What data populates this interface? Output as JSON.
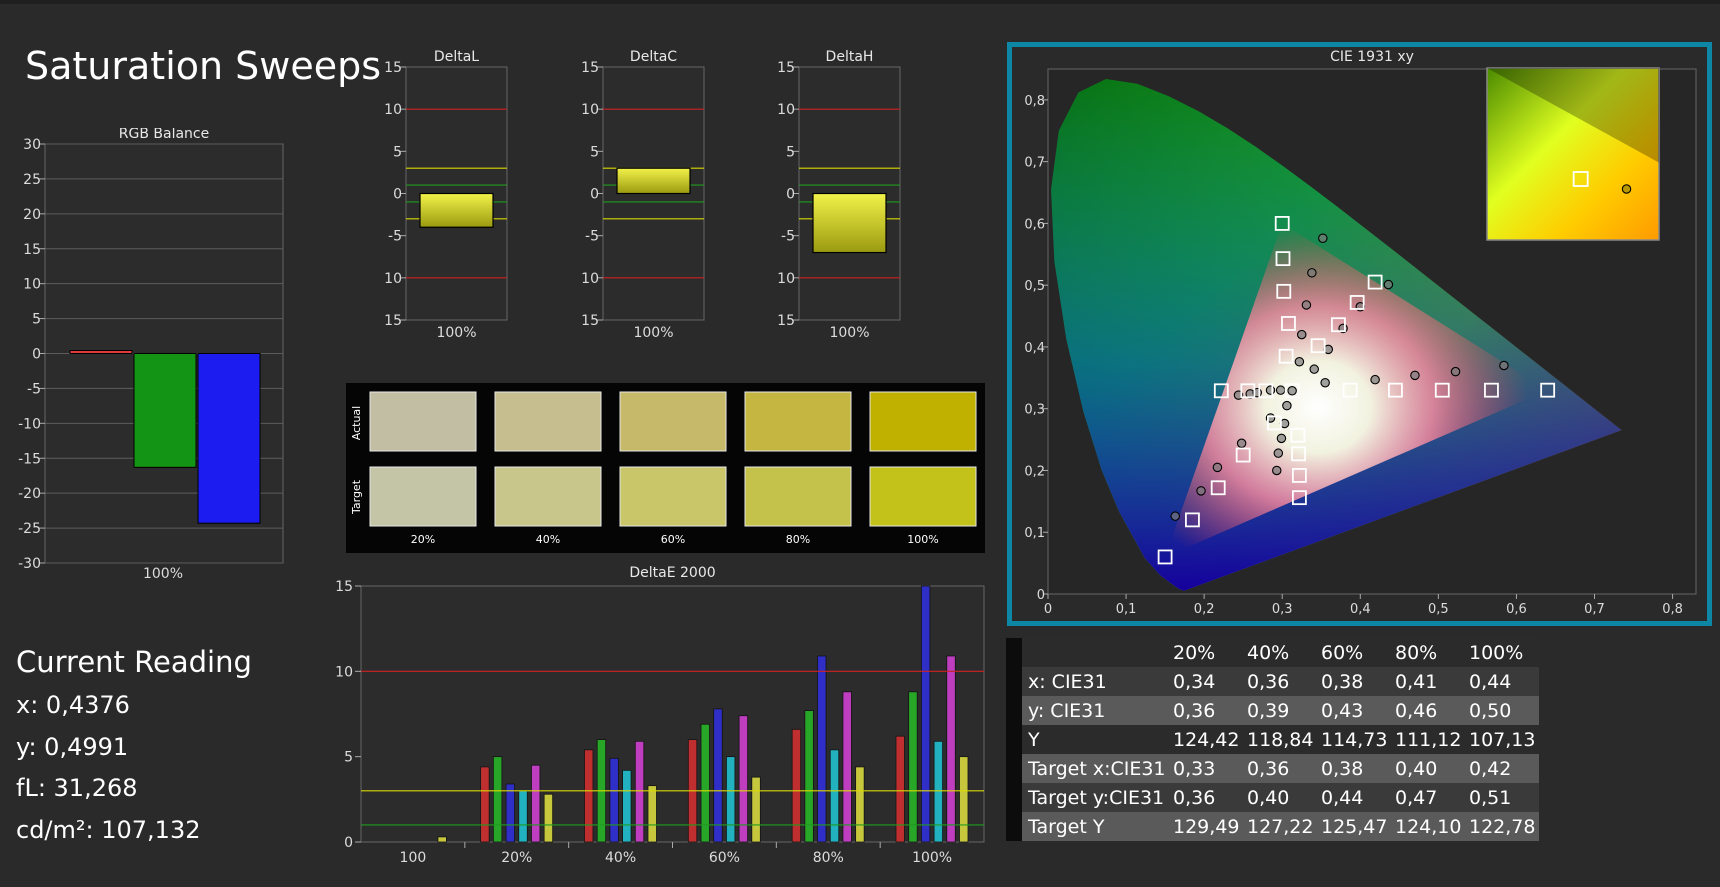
{
  "page": {
    "title": "Saturation Sweeps"
  },
  "colors": {
    "red_limit": "#cc2222",
    "yellow_limit": "#d8d800",
    "green_limit": "#1f9b1f",
    "cie_frame": "#0e86a6"
  },
  "current_reading": {
    "heading": "Current Reading",
    "lines": [
      "x: 0,4376",
      "y: 0,4991",
      "fL: 31,268",
      "cd/m²: 107,132"
    ]
  },
  "chart_data": [
    {
      "id": "rgb_balance",
      "type": "bar",
      "title": "RGB Balance",
      "categories": [
        "100%"
      ],
      "ylim": [
        -30,
        30
      ],
      "yticks": [
        30,
        25,
        20,
        15,
        10,
        5,
        0,
        -5,
        -10,
        -15,
        -20,
        -25,
        -30
      ],
      "series": [
        {
          "color": "#e23a3a",
          "values": [
            0.4
          ]
        },
        {
          "color": "#149414",
          "values": [
            -16.3
          ]
        },
        {
          "color": "#1c1cf0",
          "values": [
            -24.3
          ]
        }
      ]
    },
    {
      "id": "delta_l",
      "type": "bar",
      "title": "DeltaL",
      "categories": [
        "100%"
      ],
      "ylim": [
        -15,
        15
      ],
      "yticks": [
        15,
        10,
        5,
        0,
        -5,
        -10,
        -15
      ],
      "values": [
        -4
      ]
    },
    {
      "id": "delta_c",
      "type": "bar",
      "title": "DeltaC",
      "categories": [
        "100%"
      ],
      "ylim": [
        -15,
        15
      ],
      "yticks": [
        15,
        10,
        5,
        0,
        -5,
        -10,
        -15
      ],
      "values": [
        3
      ]
    },
    {
      "id": "delta_h",
      "type": "bar",
      "title": "DeltaH",
      "categories": [
        "100%"
      ],
      "ylim": [
        -15,
        15
      ],
      "yticks": [
        15,
        10,
        5,
        0,
        -5,
        -10,
        -15
      ],
      "values": [
        -7
      ]
    },
    {
      "id": "swatches",
      "type": "table",
      "row_labels": [
        "Actual",
        "Target"
      ],
      "columns": [
        "20%",
        "40%",
        "60%",
        "80%",
        "100%"
      ],
      "actual_colors": [
        "#c2bea4",
        "#c6be8e",
        "#c6b96a",
        "#c4b640",
        "#c0b000"
      ],
      "target_colors": [
        "#c4c4a6",
        "#c8c68a",
        "#c8c668",
        "#c4c24a",
        "#c2c21a"
      ]
    },
    {
      "id": "delta_e_2000",
      "type": "bar",
      "title": "DeltaE 2000",
      "categories": [
        "100",
        "20%",
        "40%",
        "60%",
        "80%",
        "100%"
      ],
      "ylim": [
        0,
        15
      ],
      "yticks": [
        15,
        10,
        5,
        0
      ],
      "series": [
        {
          "color": "#d03030",
          "values": [
            null,
            4.4,
            5.4,
            6.0,
            6.6,
            6.2
          ]
        },
        {
          "color": "#28b428",
          "values": [
            null,
            5.0,
            6.0,
            6.9,
            7.7,
            8.8
          ]
        },
        {
          "color": "#3030d8",
          "values": [
            null,
            3.4,
            4.9,
            7.8,
            10.9,
            15.0
          ]
        },
        {
          "color": "#20c0d0",
          "values": [
            null,
            3.0,
            4.2,
            5.0,
            5.4,
            5.9
          ]
        },
        {
          "color": "#d040d0",
          "values": [
            null,
            4.5,
            5.9,
            7.4,
            8.8,
            10.9
          ]
        },
        {
          "color": "#d8d840",
          "values": [
            0.3,
            2.8,
            3.3,
            3.8,
            4.4,
            5.0
          ]
        }
      ],
      "reference_lines": [
        10,
        3,
        1
      ]
    },
    {
      "id": "cie_1931_xy",
      "type": "scatter",
      "title": "CIE 1931 xy",
      "xlim": [
        0,
        0.83
      ],
      "ylim": [
        0,
        0.85
      ],
      "xticks": [
        "0",
        "0,1",
        "0,2",
        "0,3",
        "0,4",
        "0,5",
        "0,6",
        "0,7",
        "0,8"
      ],
      "yticks": [
        "0",
        "0,1",
        "0,2",
        "0,3",
        "0,4",
        "0,5",
        "0,6",
        "0,7",
        "0,8"
      ],
      "gamut": [
        [
          0.64,
          0.33
        ],
        [
          0.3,
          0.6
        ],
        [
          0.15,
          0.06
        ]
      ],
      "targets": [
        [
          0.3127,
          0.329
        ],
        [
          0.387,
          0.33
        ],
        [
          0.445,
          0.33
        ],
        [
          0.505,
          0.33
        ],
        [
          0.568,
          0.33
        ],
        [
          0.64,
          0.33
        ],
        [
          0.305,
          0.385
        ],
        [
          0.308,
          0.438
        ],
        [
          0.302,
          0.49
        ],
        [
          0.301,
          0.543
        ],
        [
          0.3,
          0.6
        ],
        [
          0.29,
          0.277
        ],
        [
          0.25,
          0.225
        ],
        [
          0.218,
          0.172
        ],
        [
          0.185,
          0.12
        ],
        [
          0.15,
          0.06
        ],
        [
          0.222,
          0.329
        ],
        [
          0.256,
          0.329
        ],
        [
          0.279,
          0.329
        ],
        [
          0.32,
          0.257
        ],
        [
          0.321,
          0.227
        ],
        [
          0.322,
          0.192
        ],
        [
          0.322,
          0.156
        ],
        [
          0.346,
          0.402
        ],
        [
          0.372,
          0.436
        ],
        [
          0.396,
          0.472
        ],
        [
          0.419,
          0.505
        ]
      ],
      "measured": [
        [
          0.3127,
          0.329
        ],
        [
          0.419,
          0.347
        ],
        [
          0.47,
          0.354
        ],
        [
          0.522,
          0.36
        ],
        [
          0.584,
          0.37
        ],
        [
          0.322,
          0.376
        ],
        [
          0.325,
          0.42
        ],
        [
          0.331,
          0.468
        ],
        [
          0.338,
          0.52
        ],
        [
          0.352,
          0.576
        ],
        [
          0.285,
          0.285
        ],
        [
          0.248,
          0.244
        ],
        [
          0.217,
          0.205
        ],
        [
          0.196,
          0.167
        ],
        [
          0.163,
          0.126
        ],
        [
          0.244,
          0.322
        ],
        [
          0.259,
          0.324
        ],
        [
          0.268,
          0.326
        ],
        [
          0.285,
          0.33
        ],
        [
          0.298,
          0.33
        ],
        [
          0.306,
          0.305
        ],
        [
          0.303,
          0.276
        ],
        [
          0.299,
          0.252
        ],
        [
          0.295,
          0.228
        ],
        [
          0.293,
          0.2
        ],
        [
          0.341,
          0.364
        ],
        [
          0.359,
          0.396
        ],
        [
          0.378,
          0.43
        ],
        [
          0.4,
          0.465
        ],
        [
          0.436,
          0.501
        ],
        [
          0.355,
          0.342
        ]
      ],
      "inset": {
        "target": [
          0.419,
          0.505
        ],
        "measured": [
          0.4376,
          0.4991
        ]
      }
    }
  ],
  "xy_table": {
    "columns": [
      "20%",
      "40%",
      "60%",
      "80%",
      "100%"
    ],
    "rows": [
      {
        "label": "x: CIE31",
        "values": [
          "0,34",
          "0,36",
          "0,38",
          "0,41",
          "0,44"
        ]
      },
      {
        "label": "y: CIE31",
        "values": [
          "0,36",
          "0,39",
          "0,43",
          "0,46",
          "0,50"
        ]
      },
      {
        "label": "Y",
        "values": [
          "124,42",
          "118,84",
          "114,73",
          "111,12",
          "107,13"
        ]
      },
      {
        "label": "Target x:CIE31",
        "values": [
          "0,33",
          "0,36",
          "0,38",
          "0,40",
          "0,42"
        ]
      },
      {
        "label": "Target y:CIE31",
        "values": [
          "0,36",
          "0,40",
          "0,44",
          "0,47",
          "0,51"
        ]
      },
      {
        "label": "Target Y",
        "values": [
          "129,49",
          "127,22",
          "125,47",
          "124,10",
          "122,78"
        ]
      }
    ]
  }
}
